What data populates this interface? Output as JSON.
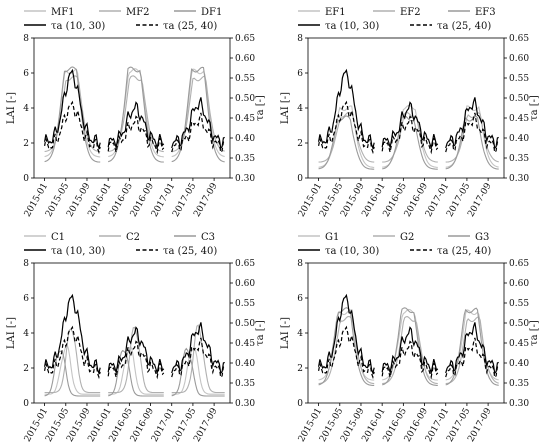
{
  "chart_data": [
    {
      "type": "line",
      "panel": "MF-DF",
      "ylabel_left": "LAI [-]",
      "ylabel_right": "τa [-]",
      "ylim_left": [
        0,
        8
      ],
      "ylim_right": [
        0.3,
        0.65
      ],
      "yticks_left": [
        "0",
        "2",
        "4",
        "6",
        "8"
      ],
      "yticks_right": [
        "0.30",
        "0.35",
        "0.40",
        "0.45",
        "0.50",
        "0.55",
        "0.60",
        "0.65"
      ],
      "xlim": [
        "2014-11",
        "2017-12"
      ],
      "xticks": [
        "2015-01",
        "2015-05",
        "2015-09",
        "2016-01",
        "2016-05",
        "2016-09",
        "2017-01",
        "2017-05",
        "2017-09"
      ],
      "legend_position": "top",
      "series": [
        {
          "name": "MF1",
          "axis": "left",
          "color": "#c4c4c4",
          "style": "solid",
          "kind": "lai",
          "peak": 6.1,
          "low": 1.2,
          "phase": 0.0
        },
        {
          "name": "MF2",
          "axis": "left",
          "color": "#b0b0b0",
          "style": "solid",
          "kind": "lai",
          "peak": 5.7,
          "low": 1.5,
          "phase": 0.2
        },
        {
          "name": "DF1",
          "axis": "left",
          "color": "#9a9a9a",
          "style": "solid",
          "kind": "lai",
          "peak": 6.2,
          "low": 0.9,
          "phase": -0.1
        },
        {
          "name": "τa (10, 30)",
          "axis": "right",
          "color": "#000000",
          "style": "solid",
          "kind": "tau",
          "peaks": [
            0.56,
            0.475,
            0.485
          ],
          "low": 0.39
        },
        {
          "name": "τa (25, 40)",
          "axis": "right",
          "color": "#000000",
          "style": "dashed",
          "kind": "tau",
          "peaks": [
            0.48,
            0.44,
            0.445
          ],
          "low": 0.38
        }
      ]
    },
    {
      "type": "line",
      "panel": "EF",
      "ylabel_left": "LAI [-]",
      "ylabel_right": "τa [-]",
      "ylim_left": [
        0,
        8
      ],
      "ylim_right": [
        0.3,
        0.65
      ],
      "yticks_left": [
        "0",
        "2",
        "4",
        "6",
        "8"
      ],
      "yticks_right": [
        "0.30",
        "0.35",
        "0.40",
        "0.45",
        "0.50",
        "0.55",
        "0.60",
        "0.65"
      ],
      "xlim": [
        "2014-11",
        "2017-12"
      ],
      "xticks": [
        "2015-01",
        "2015-05",
        "2015-09",
        "2016-01",
        "2016-05",
        "2016-09",
        "2017-01",
        "2017-05",
        "2017-09"
      ],
      "legend_position": "top",
      "series": [
        {
          "name": "EF1",
          "axis": "left",
          "color": "#c4c4c4",
          "style": "solid",
          "kind": "lai",
          "peak": 4.0,
          "low": 0.6,
          "phase": 0.1
        },
        {
          "name": "EF2",
          "axis": "left",
          "color": "#b0b0b0",
          "style": "solid",
          "kind": "lai",
          "peak": 3.6,
          "low": 0.9,
          "phase": 0.3
        },
        {
          "name": "EF3",
          "axis": "left",
          "color": "#9a9a9a",
          "style": "solid",
          "kind": "lai",
          "peak": 3.4,
          "low": 0.5,
          "phase": -0.2
        },
        {
          "name": "τa (10, 30)",
          "axis": "right",
          "color": "#000000",
          "style": "solid",
          "kind": "tau",
          "peaks": [
            0.56,
            0.475,
            0.485
          ],
          "low": 0.39
        },
        {
          "name": "τa (25, 40)",
          "axis": "right",
          "color": "#000000",
          "style": "dashed",
          "kind": "tau",
          "peaks": [
            0.48,
            0.44,
            0.445
          ],
          "low": 0.38
        }
      ]
    },
    {
      "type": "line",
      "panel": "C",
      "ylabel_left": "LAI [-]",
      "ylabel_right": "τa [-]",
      "ylim_left": [
        0,
        8
      ],
      "ylim_right": [
        0.3,
        0.65
      ],
      "yticks_left": [
        "0",
        "2",
        "4",
        "6",
        "8"
      ],
      "yticks_right": [
        "0.30",
        "0.35",
        "0.40",
        "0.45",
        "0.50",
        "0.55",
        "0.60",
        "0.65"
      ],
      "xlim": [
        "2014-11",
        "2017-12"
      ],
      "xticks": [
        "2015-01",
        "2015-05",
        "2015-09",
        "2016-01",
        "2016-05",
        "2016-09",
        "2017-01",
        "2017-05",
        "2017-09"
      ],
      "legend_position": "top",
      "series": [
        {
          "name": "C1",
          "axis": "left",
          "color": "#c4c4c4",
          "style": "solid",
          "kind": "crop",
          "peak": 3.3,
          "low": 0.5,
          "phase": 0.0
        },
        {
          "name": "C2",
          "axis": "left",
          "color": "#b0b0b0",
          "style": "solid",
          "kind": "crop",
          "peak": 4.4,
          "low": 0.6,
          "phase": 0.35
        },
        {
          "name": "C3",
          "axis": "left",
          "color": "#9a9a9a",
          "style": "solid",
          "kind": "crop",
          "peak": 3.2,
          "low": 0.4,
          "phase": -0.35
        },
        {
          "name": "τa (10, 30)",
          "axis": "right",
          "color": "#000000",
          "style": "solid",
          "kind": "tau",
          "peaks": [
            0.56,
            0.475,
            0.485
          ],
          "low": 0.39
        },
        {
          "name": "τa (25, 40)",
          "axis": "right",
          "color": "#000000",
          "style": "dashed",
          "kind": "tau",
          "peaks": [
            0.48,
            0.44,
            0.445
          ],
          "low": 0.38
        }
      ]
    },
    {
      "type": "line",
      "panel": "G",
      "ylabel_left": "LAI [-]",
      "ylabel_right": "τa [-]",
      "ylim_left": [
        0,
        8
      ],
      "ylim_right": [
        0.3,
        0.65
      ],
      "yticks_left": [
        "0",
        "2",
        "4",
        "6",
        "8"
      ],
      "yticks_right": [
        "0.30",
        "0.35",
        "0.40",
        "0.45",
        "0.50",
        "0.55",
        "0.60",
        "0.65"
      ],
      "xlim": [
        "2014-11",
        "2017-12"
      ],
      "xticks": [
        "2015-01",
        "2015-05",
        "2015-09",
        "2016-01",
        "2016-05",
        "2016-09",
        "2017-01",
        "2017-05",
        "2017-09"
      ],
      "legend_position": "top",
      "series": [
        {
          "name": "G1",
          "axis": "left",
          "color": "#c4c4c4",
          "style": "solid",
          "kind": "lai",
          "peak": 5.2,
          "low": 1.3,
          "phase": 0.0
        },
        {
          "name": "G2",
          "axis": "left",
          "color": "#b0b0b0",
          "style": "solid",
          "kind": "lai",
          "peak": 4.8,
          "low": 1.1,
          "phase": 0.25
        },
        {
          "name": "G3",
          "axis": "left",
          "color": "#9a9a9a",
          "style": "solid",
          "kind": "lai",
          "peak": 5.3,
          "low": 1.0,
          "phase": -0.2
        },
        {
          "name": "τa (10, 30)",
          "axis": "right",
          "color": "#000000",
          "style": "solid",
          "kind": "tau",
          "peaks": [
            0.56,
            0.475,
            0.485
          ],
          "low": 0.39
        },
        {
          "name": "τa (25, 40)",
          "axis": "right",
          "color": "#000000",
          "style": "dashed",
          "kind": "tau",
          "peaks": [
            0.48,
            0.44,
            0.445
          ],
          "low": 0.38
        }
      ]
    }
  ]
}
